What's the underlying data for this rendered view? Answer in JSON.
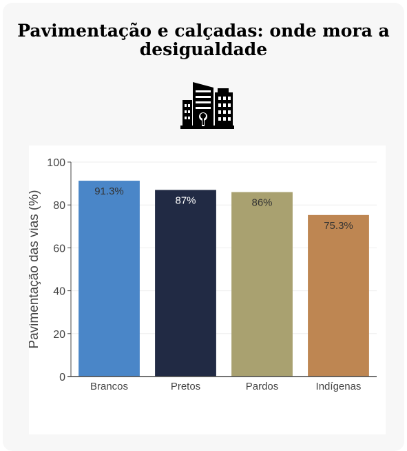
{
  "header": {
    "title": "Pavimentação e calçadas: onde mora a desigualdade",
    "icon": "city-buildings-icon"
  },
  "chart_data": {
    "type": "bar",
    "title": "",
    "xlabel": "",
    "ylabel": "Pavimentação das vias (%)",
    "categories": [
      "Brancos",
      "Pretos",
      "Pardos",
      "Indígenas"
    ],
    "values": [
      91.3,
      87,
      86,
      75.3
    ],
    "data_labels": [
      "91.3%",
      "87%",
      "86%",
      "75.3%"
    ],
    "ylim": [
      0,
      100
    ],
    "yticks": [
      0,
      20,
      40,
      60,
      80,
      100
    ],
    "grid": true,
    "colors": [
      "#4a86c8",
      "#212a44",
      "#a9a170",
      "#be8652"
    ],
    "label_colors": [
      "#333333",
      "#ffffff",
      "#333333",
      "#333333"
    ]
  }
}
